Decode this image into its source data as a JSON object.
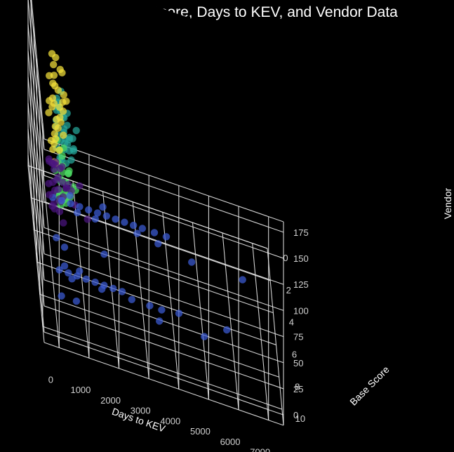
{
  "chart_data": {
    "type": "scatter",
    "title": "Clusters in Base Score, Days to KEV, and Vendor Data",
    "xlabel": "Days to KEV",
    "ylabel": "Base Score",
    "zlabel": "Vendor",
    "xlim": [
      -500,
      7500
    ],
    "ylim": [
      0,
      11
    ],
    "zlim": [
      -10,
      185
    ],
    "x_ticks": [
      "0",
      "1000",
      "2000",
      "3000",
      "4000",
      "5000",
      "6000",
      "7000"
    ],
    "y_ticks": [
      "0",
      "2",
      "4",
      "6",
      "8",
      "10"
    ],
    "z_ticks": [
      "0",
      "25",
      "50",
      "75",
      "100",
      "125",
      "150",
      "175"
    ],
    "grid": true,
    "colors": {
      "background": "#000000",
      "cluster_teal": "#26a69a",
      "cluster_green": "#4cd964",
      "cluster_yellow": "#f4e03a",
      "cluster_purple": "#4b1580",
      "cluster_blue": "#3b5bd6"
    },
    "series": [
      {
        "color": "#26a69a",
        "points": [
          [
            150,
            7.0,
            165
          ],
          [
            200,
            8.0,
            172
          ],
          [
            300,
            7.5,
            160
          ],
          [
            400,
            8.5,
            150
          ],
          [
            120,
            6.5,
            140
          ],
          [
            250,
            9.0,
            168
          ],
          [
            350,
            7.2,
            155
          ],
          [
            100,
            8.2,
            178
          ],
          [
            500,
            7.8,
            145
          ],
          [
            180,
            6.8,
            158
          ],
          [
            450,
            8.8,
            162
          ],
          [
            220,
            7.4,
            135
          ],
          [
            600,
            8.0,
            150
          ],
          [
            320,
            9.2,
            142
          ],
          [
            80,
            7.6,
            130
          ],
          [
            700,
            8.4,
            165
          ],
          [
            140,
            6.4,
            148
          ],
          [
            280,
            9.5,
            170
          ],
          [
            380,
            7.0,
            128
          ],
          [
            520,
            8.6,
            138
          ],
          [
            90,
            9.8,
            152
          ],
          [
            260,
            6.9,
            175
          ],
          [
            420,
            9.4,
            158
          ],
          [
            160,
            8.3,
            132
          ],
          [
            340,
            7.3,
            146
          ],
          [
            60,
            8.9,
            162
          ],
          [
            480,
            6.6,
            140
          ],
          [
            240,
            7.9,
            125
          ],
          [
            580,
            9.1,
            155
          ],
          [
            200,
            6.2,
            150
          ],
          [
            110,
            7.1,
            170
          ],
          [
            310,
            8.1,
            138
          ],
          [
            430,
            7.7,
            168
          ],
          [
            170,
            9.6,
            144
          ],
          [
            650,
            7.5,
            133
          ],
          [
            50,
            8.0,
            156
          ]
        ]
      },
      {
        "color": "#4cd964",
        "points": [
          [
            150,
            7.5,
            110
          ],
          [
            200,
            8.0,
            105
          ],
          [
            300,
            7.0,
            115
          ],
          [
            400,
            8.5,
            100
          ],
          [
            250,
            7.2,
            95
          ],
          [
            350,
            6.8,
            120
          ],
          [
            120,
            8.8,
            108
          ],
          [
            500,
            7.6,
            112
          ],
          [
            180,
            6.5,
            100
          ],
          [
            450,
            8.2,
            118
          ],
          [
            220,
            9.0,
            102
          ],
          [
            100,
            7.8,
            90
          ],
          [
            600,
            8.4,
            110
          ],
          [
            320,
            6.9,
            98
          ],
          [
            80,
            8.6,
            115
          ],
          [
            140,
            7.3,
            85
          ],
          [
            280,
            9.3,
            112
          ],
          [
            380,
            7.9,
            104
          ],
          [
            520,
            6.7,
            96
          ],
          [
            90,
            9.6,
            110
          ],
          [
            260,
            8.1,
            122
          ],
          [
            420,
            7.1,
            92
          ],
          [
            160,
            8.9,
            100
          ],
          [
            340,
            7.6,
            88
          ],
          [
            60,
            7.4,
            105
          ],
          [
            480,
            8.7,
            108
          ],
          [
            240,
            6.6,
            114
          ],
          [
            200,
            7.5,
            80
          ],
          [
            120,
            8.3,
            95
          ],
          [
            300,
            9.1,
            106
          ],
          [
            700,
            7.9,
            100
          ],
          [
            160,
            6.3,
            118
          ],
          [
            380,
            8.0,
            86
          ],
          [
            450,
            9.4,
            114
          ],
          [
            220,
            7.7,
            78
          ]
        ]
      },
      {
        "color": "#f4e03a",
        "points": [
          [
            150,
            3.0,
            150
          ],
          [
            300,
            2.5,
            140
          ],
          [
            200,
            4.0,
            135
          ],
          [
            400,
            3.5,
            145
          ],
          [
            250,
            2.0,
            125
          ],
          [
            100,
            4.5,
            130
          ],
          [
            350,
            3.2,
            120
          ],
          [
            500,
            2.8,
            132
          ],
          [
            180,
            3.8,
            115
          ],
          [
            450,
            4.2,
            125
          ],
          [
            220,
            2.2,
            110
          ],
          [
            600,
            3.6,
            118
          ],
          [
            320,
            4.8,
            128
          ],
          [
            80,
            2.6,
            122
          ],
          [
            140,
            3.4,
            105
          ],
          [
            280,
            1.8,
            112
          ],
          [
            380,
            4.4,
            108
          ],
          [
            520,
            3.1,
            100
          ],
          [
            90,
            2.4,
            95
          ],
          [
            260,
            3.9,
            102
          ],
          [
            420,
            2.9,
            90
          ],
          [
            160,
            4.6,
            98
          ],
          [
            340,
            3.3,
            85
          ],
          [
            60,
            2.7,
            88
          ],
          [
            480,
            4.1,
            92
          ],
          [
            240,
            3.7,
            80
          ],
          [
            580,
            2.3,
            104
          ],
          [
            200,
            3.5,
            72
          ],
          [
            120,
            4.3,
            78
          ],
          [
            310,
            2.1,
            68
          ],
          [
            400,
            3.0,
            60
          ],
          [
            180,
            4.0,
            62
          ],
          [
            250,
            3.6,
            55
          ],
          [
            130,
            2.9,
            65
          ]
        ]
      },
      {
        "color": "#4b1580",
        "points": [
          [
            150,
            3.0,
            45
          ],
          [
            300,
            2.5,
            40
          ],
          [
            200,
            4.0,
            35
          ],
          [
            400,
            3.5,
            50
          ],
          [
            250,
            2.0,
            30
          ],
          [
            100,
            4.5,
            38
          ],
          [
            350,
            3.2,
            25
          ],
          [
            500,
            2.8,
            42
          ],
          [
            180,
            3.8,
            20
          ],
          [
            450,
            4.2,
            48
          ],
          [
            220,
            2.2,
            15
          ],
          [
            600,
            3.6,
            35
          ],
          [
            320,
            4.8,
            28
          ],
          [
            80,
            2.6,
            40
          ],
          [
            140,
            3.4,
            10
          ],
          [
            280,
            1.8,
            22
          ],
          [
            380,
            4.4,
            32
          ],
          [
            520,
            3.1,
            18
          ],
          [
            90,
            2.4,
            5
          ],
          [
            260,
            3.9,
            44
          ],
          [
            420,
            2.9,
            12
          ],
          [
            160,
            4.6,
            26
          ],
          [
            340,
            3.3,
            38
          ],
          [
            60,
            2.7,
            20
          ],
          [
            480,
            4.1,
            8
          ],
          [
            700,
            3.0,
            30
          ],
          [
            900,
            3.5,
            20
          ],
          [
            1100,
            2.5,
            25
          ],
          [
            750,
            4.0,
            40
          ],
          [
            1300,
            3.8,
            15
          ],
          [
            50,
            3.0,
            48
          ],
          [
            240,
            3.5,
            52
          ],
          [
            560,
            4.3,
            45
          ]
        ]
      },
      {
        "color": "#3b5bd6",
        "points": [
          [
            200,
            7.0,
            5
          ],
          [
            500,
            7.0,
            5
          ],
          [
            800,
            7.0,
            5
          ],
          [
            1100,
            7.0,
            5
          ],
          [
            1400,
            7.0,
            5
          ],
          [
            1700,
            7.0,
            5
          ],
          [
            2000,
            7.0,
            5
          ],
          [
            2300,
            7.0,
            5
          ],
          [
            600,
            7.5,
            8
          ],
          [
            1600,
            7.5,
            8
          ],
          [
            2600,
            7.5,
            8
          ],
          [
            3200,
            7.5,
            8
          ],
          [
            3600,
            7.5,
            8
          ],
          [
            400,
            6.5,
            3
          ],
          [
            900,
            6.5,
            3
          ],
          [
            200,
            5.0,
            5
          ],
          [
            450,
            5.5,
            6
          ],
          [
            1800,
            5.0,
            5
          ],
          [
            3500,
            8.0,
            4
          ],
          [
            5000,
            8.0,
            4
          ],
          [
            4200,
            7.0,
            3
          ],
          [
            5800,
            7.0,
            3
          ],
          [
            200,
            2.5,
            5
          ],
          [
            500,
            2.5,
            5
          ],
          [
            800,
            2.5,
            5
          ],
          [
            1100,
            2.5,
            5
          ],
          [
            1400,
            2.5,
            5
          ],
          [
            1700,
            2.5,
            5
          ],
          [
            2000,
            2.5,
            5
          ],
          [
            2300,
            2.5,
            5
          ],
          [
            2600,
            2.5,
            5
          ],
          [
            2900,
            2.5,
            5
          ],
          [
            3200,
            2.5,
            5
          ],
          [
            3600,
            2.5,
            5
          ],
          [
            4000,
            2.5,
            5
          ],
          [
            1000,
            3.0,
            6
          ],
          [
            1600,
            3.0,
            6
          ],
          [
            3000,
            3.0,
            6
          ],
          [
            4800,
            3.5,
            4
          ],
          [
            6500,
            3.5,
            4
          ],
          [
            3700,
            3.0,
            3
          ],
          [
            800,
            2.0,
            5
          ],
          [
            1900,
            2.0,
            5
          ],
          [
            200,
            8.5,
            3
          ],
          [
            700,
            8.5,
            3
          ]
        ]
      }
    ]
  }
}
